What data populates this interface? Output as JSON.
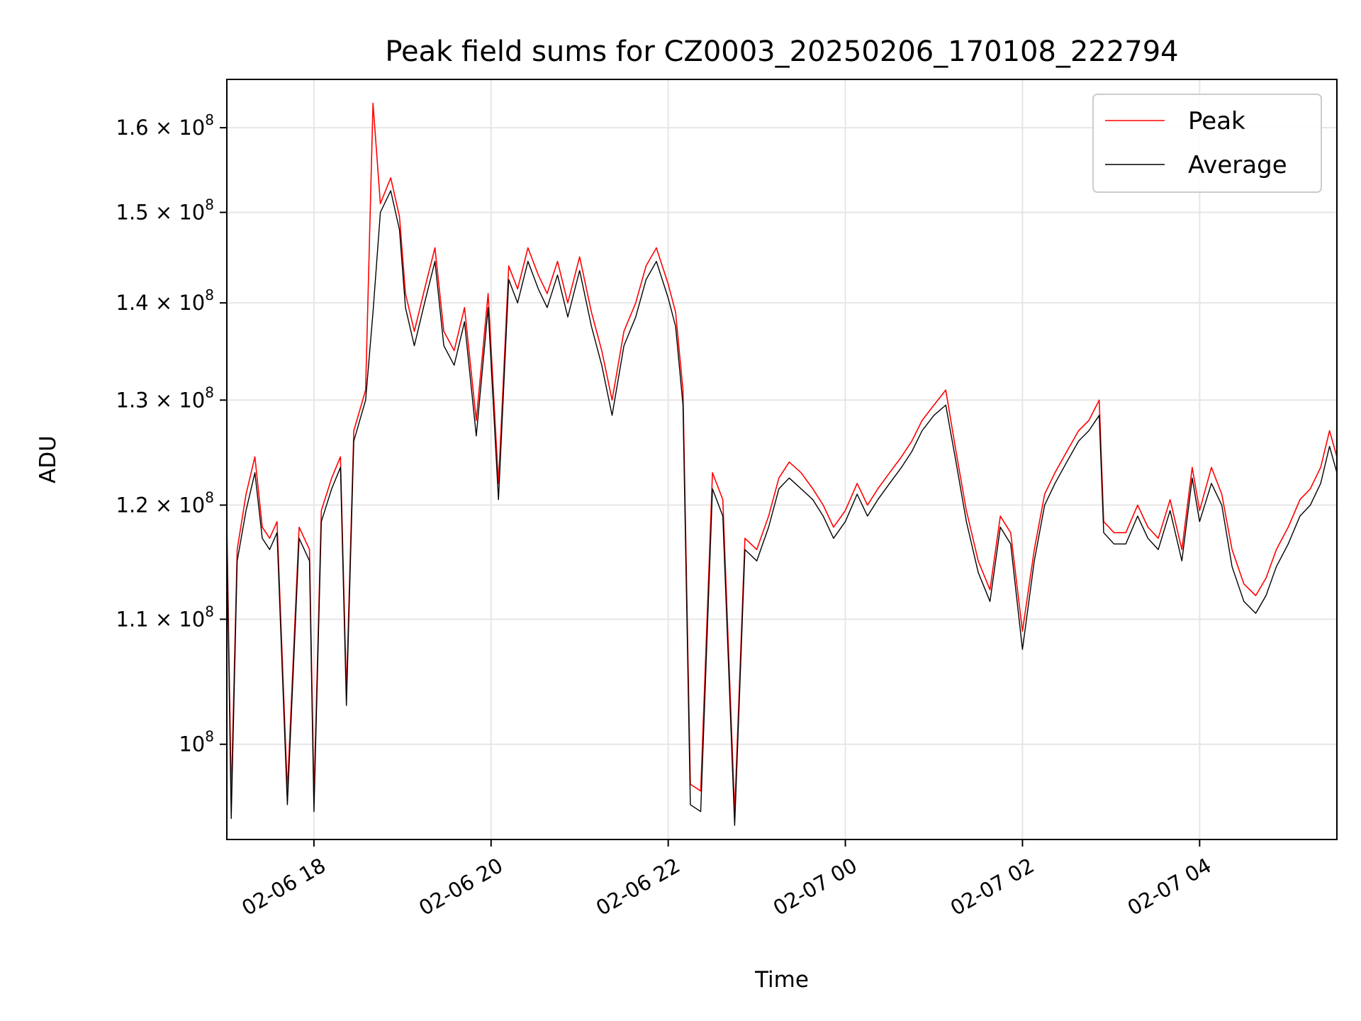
{
  "chart_data": {
    "type": "line",
    "title": "Peak field sums for CZ0003_20250206_170108_222794",
    "xlabel": "Time",
    "ylabel": "ADU",
    "y_scale": "log",
    "ylim": [
      93000000,
      166000000
    ],
    "xlim": [
      "2025-02-06T17:01",
      "2025-02-07T05:33"
    ],
    "grid": true,
    "legend_position": "top-right",
    "x_ticks": [
      {
        "t": "2025-02-06T18:00",
        "label": "02-06 18"
      },
      {
        "t": "2025-02-06T20:00",
        "label": "02-06 20"
      },
      {
        "t": "2025-02-06T22:00",
        "label": "02-06 22"
      },
      {
        "t": "2025-02-07T00:00",
        "label": "02-07 00"
      },
      {
        "t": "2025-02-07T02:00",
        "label": "02-07 02"
      },
      {
        "t": "2025-02-07T04:00",
        "label": "02-07 04"
      }
    ],
    "y_ticks": [
      {
        "v": 100000000,
        "mant": "10",
        "exp": "8"
      },
      {
        "v": 110000000,
        "mant": "1.1 × 10",
        "exp": "8"
      },
      {
        "v": 120000000,
        "mant": "1.2 × 10",
        "exp": "8"
      },
      {
        "v": 130000000,
        "mant": "1.3 × 10",
        "exp": "8"
      },
      {
        "v": 140000000,
        "mant": "1.4 × 10",
        "exp": "8"
      },
      {
        "v": 150000000,
        "mant": "1.5 × 10",
        "exp": "8"
      },
      {
        "v": 160000000,
        "mant": "1.6 × 10",
        "exp": "8"
      }
    ],
    "series": [
      {
        "name": "Peak",
        "color": "#ff0000",
        "points": [
          [
            "2025-02-06T17:01",
            118.5
          ],
          [
            "2025-02-06T17:04",
            96.0
          ],
          [
            "2025-02-06T17:08",
            116.0
          ],
          [
            "2025-02-06T17:14",
            121.0
          ],
          [
            "2025-02-06T17:20",
            124.5
          ],
          [
            "2025-02-06T17:25",
            118.0
          ],
          [
            "2025-02-06T17:30",
            117.0
          ],
          [
            "2025-02-06T17:35",
            118.5
          ],
          [
            "2025-02-06T17:42",
            96.5
          ],
          [
            "2025-02-06T17:50",
            118.0
          ],
          [
            "2025-02-06T17:57",
            116.0
          ],
          [
            "2025-02-06T18:00",
            96.0
          ],
          [
            "2025-02-06T18:05",
            119.5
          ],
          [
            "2025-02-06T18:12",
            122.5
          ],
          [
            "2025-02-06T18:18",
            124.5
          ],
          [
            "2025-02-06T18:22",
            104.0
          ],
          [
            "2025-02-06T18:27",
            127.0
          ],
          [
            "2025-02-06T18:35",
            131.0
          ],
          [
            "2025-02-06T18:40",
            163.0
          ],
          [
            "2025-02-06T18:45",
            151.0
          ],
          [
            "2025-02-06T18:52",
            154.0
          ],
          [
            "2025-02-06T18:58",
            149.5
          ],
          [
            "2025-02-06T19:02",
            141.0
          ],
          [
            "2025-02-06T19:08",
            137.0
          ],
          [
            "2025-02-06T19:15",
            141.5
          ],
          [
            "2025-02-06T19:22",
            146.0
          ],
          [
            "2025-02-06T19:28",
            137.0
          ],
          [
            "2025-02-06T19:35",
            135.0
          ],
          [
            "2025-02-06T19:42",
            139.5
          ],
          [
            "2025-02-06T19:50",
            128.0
          ],
          [
            "2025-02-06T19:58",
            141.0
          ],
          [
            "2025-02-06T20:05",
            122.0
          ],
          [
            "2025-02-06T20:12",
            144.0
          ],
          [
            "2025-02-06T20:18",
            141.5
          ],
          [
            "2025-02-06T20:25",
            146.0
          ],
          [
            "2025-02-06T20:32",
            143.0
          ],
          [
            "2025-02-06T20:38",
            141.0
          ],
          [
            "2025-02-06T20:45",
            144.5
          ],
          [
            "2025-02-06T20:52",
            140.0
          ],
          [
            "2025-02-06T21:00",
            145.0
          ],
          [
            "2025-02-06T21:08",
            139.0
          ],
          [
            "2025-02-06T21:15",
            135.0
          ],
          [
            "2025-02-06T21:22",
            130.0
          ],
          [
            "2025-02-06T21:30",
            137.0
          ],
          [
            "2025-02-06T21:38",
            140.0
          ],
          [
            "2025-02-06T21:45",
            144.0
          ],
          [
            "2025-02-06T21:52",
            146.0
          ],
          [
            "2025-02-06T22:00",
            142.0
          ],
          [
            "2025-02-06T22:05",
            139.0
          ],
          [
            "2025-02-06T22:10",
            131.0
          ],
          [
            "2025-02-06T22:15",
            97.0
          ],
          [
            "2025-02-06T22:22",
            96.5
          ],
          [
            "2025-02-06T22:30",
            123.0
          ],
          [
            "2025-02-06T22:37",
            120.5
          ],
          [
            "2025-02-06T22:45",
            95.0
          ],
          [
            "2025-02-06T22:52",
            117.0
          ],
          [
            "2025-02-06T23:00",
            116.0
          ],
          [
            "2025-02-06T23:08",
            119.0
          ],
          [
            "2025-02-06T23:15",
            122.5
          ],
          [
            "2025-02-06T23:22",
            124.0
          ],
          [
            "2025-02-06T23:30",
            123.0
          ],
          [
            "2025-02-06T23:38",
            121.5
          ],
          [
            "2025-02-06T23:45",
            120.0
          ],
          [
            "2025-02-06T23:52",
            118.0
          ],
          [
            "2025-02-07T00:00",
            119.5
          ],
          [
            "2025-02-07T00:08",
            122.0
          ],
          [
            "2025-02-07T00:15",
            120.0
          ],
          [
            "2025-02-07T00:22",
            121.5
          ],
          [
            "2025-02-07T00:30",
            123.0
          ],
          [
            "2025-02-07T00:38",
            124.5
          ],
          [
            "2025-02-07T00:45",
            126.0
          ],
          [
            "2025-02-07T00:52",
            128.0
          ],
          [
            "2025-02-07T01:00",
            129.5
          ],
          [
            "2025-02-07T01:08",
            131.0
          ],
          [
            "2025-02-07T01:15",
            125.0
          ],
          [
            "2025-02-07T01:22",
            119.5
          ],
          [
            "2025-02-07T01:30",
            115.0
          ],
          [
            "2025-02-07T01:38",
            112.5
          ],
          [
            "2025-02-07T01:45",
            119.0
          ],
          [
            "2025-02-07T01:52",
            117.5
          ],
          [
            "2025-02-07T02:00",
            109.0
          ],
          [
            "2025-02-07T02:08",
            116.0
          ],
          [
            "2025-02-07T02:15",
            121.0
          ],
          [
            "2025-02-07T02:22",
            123.0
          ],
          [
            "2025-02-07T02:30",
            125.0
          ],
          [
            "2025-02-07T02:38",
            127.0
          ],
          [
            "2025-02-07T02:45",
            128.0
          ],
          [
            "2025-02-07T02:52",
            130.0
          ],
          [
            "2025-02-07T02:55",
            118.5
          ],
          [
            "2025-02-07T03:02",
            117.5
          ],
          [
            "2025-02-07T03:10",
            117.5
          ],
          [
            "2025-02-07T03:18",
            120.0
          ],
          [
            "2025-02-07T03:25",
            118.0
          ],
          [
            "2025-02-07T03:32",
            117.0
          ],
          [
            "2025-02-07T03:40",
            120.5
          ],
          [
            "2025-02-07T03:48",
            116.0
          ],
          [
            "2025-02-07T03:55",
            123.5
          ],
          [
            "2025-02-07T04:00",
            119.5
          ],
          [
            "2025-02-07T04:08",
            123.5
          ],
          [
            "2025-02-07T04:15",
            121.0
          ],
          [
            "2025-02-07T04:22",
            116.0
          ],
          [
            "2025-02-07T04:30",
            113.0
          ],
          [
            "2025-02-07T04:38",
            112.0
          ],
          [
            "2025-02-07T04:45",
            113.5
          ],
          [
            "2025-02-07T04:52",
            116.0
          ],
          [
            "2025-02-07T05:00",
            118.0
          ],
          [
            "2025-02-07T05:08",
            120.5
          ],
          [
            "2025-02-07T05:15",
            121.5
          ],
          [
            "2025-02-07T05:22",
            123.5
          ],
          [
            "2025-02-07T05:28",
            127.0
          ],
          [
            "2025-02-07T05:33",
            124.5
          ]
        ]
      },
      {
        "name": "Average",
        "color": "#000000",
        "points": [
          [
            "2025-02-06T17:01",
            117.5
          ],
          [
            "2025-02-06T17:04",
            94.5
          ],
          [
            "2025-02-06T17:08",
            115.0
          ],
          [
            "2025-02-06T17:14",
            119.5
          ],
          [
            "2025-02-06T17:20",
            123.0
          ],
          [
            "2025-02-06T17:25",
            117.0
          ],
          [
            "2025-02-06T17:30",
            116.0
          ],
          [
            "2025-02-06T17:35",
            117.5
          ],
          [
            "2025-02-06T17:42",
            95.5
          ],
          [
            "2025-02-06T17:50",
            117.0
          ],
          [
            "2025-02-06T17:57",
            115.0
          ],
          [
            "2025-02-06T18:00",
            95.0
          ],
          [
            "2025-02-06T18:05",
            118.5
          ],
          [
            "2025-02-06T18:12",
            121.5
          ],
          [
            "2025-02-06T18:18",
            123.5
          ],
          [
            "2025-02-06T18:22",
            103.0
          ],
          [
            "2025-02-06T18:27",
            126.0
          ],
          [
            "2025-02-06T18:35",
            130.0
          ],
          [
            "2025-02-06T18:40",
            139.0
          ],
          [
            "2025-02-06T18:45",
            150.0
          ],
          [
            "2025-02-06T18:52",
            152.5
          ],
          [
            "2025-02-06T18:58",
            148.0
          ],
          [
            "2025-02-06T19:02",
            139.5
          ],
          [
            "2025-02-06T19:08",
            135.5
          ],
          [
            "2025-02-06T19:15",
            140.0
          ],
          [
            "2025-02-06T19:22",
            144.5
          ],
          [
            "2025-02-06T19:28",
            135.5
          ],
          [
            "2025-02-06T19:35",
            133.5
          ],
          [
            "2025-02-06T19:42",
            138.0
          ],
          [
            "2025-02-06T19:50",
            126.5
          ],
          [
            "2025-02-06T19:58",
            139.5
          ],
          [
            "2025-02-06T20:05",
            120.5
          ],
          [
            "2025-02-06T20:12",
            142.5
          ],
          [
            "2025-02-06T20:18",
            140.0
          ],
          [
            "2025-02-06T20:25",
            144.5
          ],
          [
            "2025-02-06T20:32",
            141.5
          ],
          [
            "2025-02-06T20:38",
            139.5
          ],
          [
            "2025-02-06T20:45",
            143.0
          ],
          [
            "2025-02-06T20:52",
            138.5
          ],
          [
            "2025-02-06T21:00",
            143.5
          ],
          [
            "2025-02-06T21:08",
            137.5
          ],
          [
            "2025-02-06T21:15",
            133.5
          ],
          [
            "2025-02-06T21:22",
            128.5
          ],
          [
            "2025-02-06T21:30",
            135.5
          ],
          [
            "2025-02-06T21:38",
            138.5
          ],
          [
            "2025-02-06T21:45",
            142.5
          ],
          [
            "2025-02-06T21:52",
            144.5
          ],
          [
            "2025-02-06T22:00",
            140.5
          ],
          [
            "2025-02-06T22:05",
            137.5
          ],
          [
            "2025-02-06T22:10",
            129.5
          ],
          [
            "2025-02-06T22:15",
            95.5
          ],
          [
            "2025-02-06T22:22",
            95.0
          ],
          [
            "2025-02-06T22:30",
            121.5
          ],
          [
            "2025-02-06T22:37",
            119.0
          ],
          [
            "2025-02-06T22:45",
            94.0
          ],
          [
            "2025-02-06T22:52",
            116.0
          ],
          [
            "2025-02-06T23:00",
            115.0
          ],
          [
            "2025-02-06T23:08",
            118.0
          ],
          [
            "2025-02-06T23:15",
            121.5
          ],
          [
            "2025-02-06T23:22",
            122.5
          ],
          [
            "2025-02-06T23:30",
            121.5
          ],
          [
            "2025-02-06T23:38",
            120.5
          ],
          [
            "2025-02-06T23:45",
            119.0
          ],
          [
            "2025-02-06T23:52",
            117.0
          ],
          [
            "2025-02-07T00:00",
            118.5
          ],
          [
            "2025-02-07T00:08",
            121.0
          ],
          [
            "2025-02-07T00:15",
            119.0
          ],
          [
            "2025-02-07T00:22",
            120.5
          ],
          [
            "2025-02-07T00:30",
            122.0
          ],
          [
            "2025-02-07T00:38",
            123.5
          ],
          [
            "2025-02-07T00:45",
            125.0
          ],
          [
            "2025-02-07T00:52",
            127.0
          ],
          [
            "2025-02-07T01:00",
            128.5
          ],
          [
            "2025-02-07T01:08",
            129.5
          ],
          [
            "2025-02-07T01:15",
            124.0
          ],
          [
            "2025-02-07T01:22",
            118.5
          ],
          [
            "2025-02-07T01:30",
            114.0
          ],
          [
            "2025-02-07T01:38",
            111.5
          ],
          [
            "2025-02-07T01:45",
            118.0
          ],
          [
            "2025-02-07T01:52",
            116.5
          ],
          [
            "2025-02-07T02:00",
            107.5
          ],
          [
            "2025-02-07T02:08",
            115.0
          ],
          [
            "2025-02-07T02:15",
            120.0
          ],
          [
            "2025-02-07T02:22",
            122.0
          ],
          [
            "2025-02-07T02:30",
            124.0
          ],
          [
            "2025-02-07T02:38",
            126.0
          ],
          [
            "2025-02-07T02:45",
            127.0
          ],
          [
            "2025-02-07T02:52",
            128.5
          ],
          [
            "2025-02-07T02:55",
            117.5
          ],
          [
            "2025-02-07T03:02",
            116.5
          ],
          [
            "2025-02-07T03:10",
            116.5
          ],
          [
            "2025-02-07T03:18",
            119.0
          ],
          [
            "2025-02-07T03:25",
            117.0
          ],
          [
            "2025-02-07T03:32",
            116.0
          ],
          [
            "2025-02-07T03:40",
            119.5
          ],
          [
            "2025-02-07T03:48",
            115.0
          ],
          [
            "2025-02-07T03:55",
            122.5
          ],
          [
            "2025-02-07T04:00",
            118.5
          ],
          [
            "2025-02-07T04:08",
            122.0
          ],
          [
            "2025-02-07T04:15",
            120.0
          ],
          [
            "2025-02-07T04:22",
            114.5
          ],
          [
            "2025-02-07T04:30",
            111.5
          ],
          [
            "2025-02-07T04:38",
            110.5
          ],
          [
            "2025-02-07T04:45",
            112.0
          ],
          [
            "2025-02-07T04:52",
            114.5
          ],
          [
            "2025-02-07T05:00",
            116.5
          ],
          [
            "2025-02-07T05:08",
            119.0
          ],
          [
            "2025-02-07T05:15",
            120.0
          ],
          [
            "2025-02-07T05:22",
            122.0
          ],
          [
            "2025-02-07T05:28",
            125.5
          ],
          [
            "2025-02-07T05:33",
            123.0
          ]
        ]
      }
    ]
  }
}
